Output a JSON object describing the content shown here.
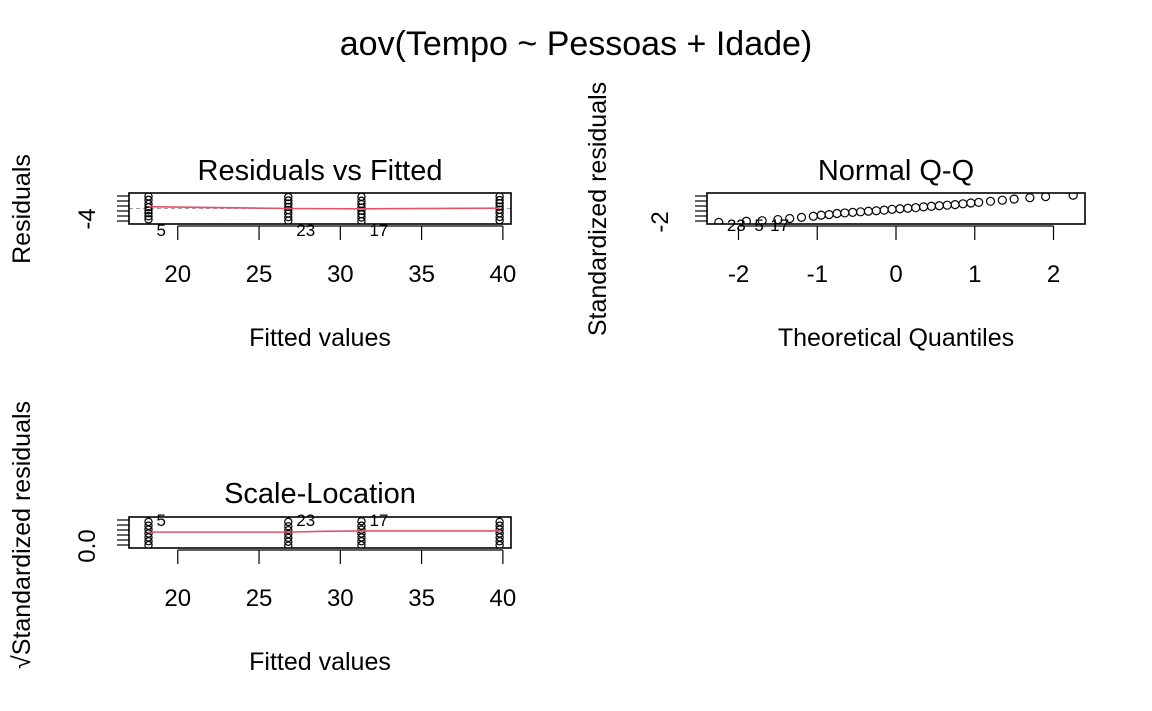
{
  "main_title": "aov(Tempo ~ Pessoas + Idade)",
  "colors": {
    "smooth": "#DF536B",
    "points": "#000000",
    "reference": "#9E9E9E"
  },
  "chart_data": [
    {
      "id": "resid",
      "type": "scatter",
      "title": "Residuals vs Fitted",
      "xlabel": "Fitted values",
      "ylabel": "Residuals",
      "xlim": [
        17,
        40.5
      ],
      "ylim": [
        -5,
        5
      ],
      "xticks": [
        "20",
        "25",
        "30",
        "35",
        "40"
      ],
      "xtick_values": [
        20,
        25,
        30,
        35,
        40
      ],
      "yticks": [
        "-4"
      ],
      "ytick_values": [
        -4
      ],
      "groups": [
        {
          "x": 18.2,
          "y": [
            -3.5,
            -2.5,
            -1.5,
            -0.6,
            0.4,
            1.5,
            2.8,
            3.9
          ]
        },
        {
          "x": 26.8,
          "y": [
            -3.9,
            -2.8,
            -1.6,
            -0.5,
            0.5,
            1.6,
            2.6,
            3.7
          ]
        },
        {
          "x": 31.3,
          "y": [
            -4.1,
            -2.9,
            -1.8,
            -0.7,
            0.3,
            1.4,
            2.5,
            3.8
          ]
        },
        {
          "x": 39.8,
          "y": [
            -3.8,
            -2.7,
            -1.5,
            -0.4,
            0.6,
            1.7,
            2.7,
            3.9
          ]
        }
      ],
      "smooth": {
        "x": [
          18.2,
          26.8,
          31.3,
          39.8
        ],
        "y": [
          0.6,
          0.0,
          -0.1,
          0.1
        ]
      },
      "reference_y": 0,
      "point_labels": [
        {
          "text": "5",
          "x": 18.2,
          "y": -3.5
        },
        {
          "text": "23",
          "x": 26.8,
          "y": -3.9
        },
        {
          "text": "17",
          "x": 31.3,
          "y": -4.1
        }
      ]
    },
    {
      "id": "qq",
      "type": "scatter",
      "title": "Normal Q-Q",
      "xlabel": "Theoretical Quantiles",
      "ylabel": "Standardized residuals",
      "xlim": [
        -2.4,
        2.4
      ],
      "ylim": [
        -2.8,
        2.8
      ],
      "xticks": [
        "-2",
        "-1",
        "0",
        "1",
        "2"
      ],
      "xtick_values": [
        -2,
        -1,
        0,
        1,
        2
      ],
      "yticks": [
        "-2"
      ],
      "ytick_values": [
        -2
      ],
      "theoretical": [
        -2.25,
        -1.9,
        -1.7,
        -1.5,
        -1.35,
        -1.2,
        -1.05,
        -0.95,
        -0.85,
        -0.75,
        -0.65,
        -0.55,
        -0.45,
        -0.35,
        -0.25,
        -0.15,
        -0.05,
        0.05,
        0.15,
        0.25,
        0.35,
        0.45,
        0.55,
        0.65,
        0.75,
        0.85,
        0.95,
        1.05,
        1.2,
        1.35,
        1.5,
        1.7,
        1.9,
        2.25
      ],
      "sample": [
        -2.5,
        -2.3,
        -2.2,
        -2.0,
        -1.8,
        -1.6,
        -1.4,
        -1.2,
        -1.1,
        -0.9,
        -0.8,
        -0.7,
        -0.6,
        -0.5,
        -0.4,
        -0.3,
        -0.15,
        -0.05,
        0.05,
        0.15,
        0.3,
        0.4,
        0.5,
        0.6,
        0.7,
        0.85,
        1.0,
        1.1,
        1.3,
        1.5,
        1.7,
        1.95,
        2.15,
        2.4
      ],
      "point_labels": [
        {
          "text": "23",
          "x": -2.25,
          "y": -2.5
        },
        {
          "text": "5",
          "x": -1.9,
          "y": -2.3
        },
        {
          "text": "17",
          "x": -1.7,
          "y": -2.2
        }
      ]
    },
    {
      "id": "scale",
      "type": "scatter",
      "title": "Scale-Location",
      "xlabel": "Fitted values",
      "ylabel": "√Standardized residuals",
      "xlim": [
        17,
        40.5
      ],
      "ylim": [
        0,
        1.6
      ],
      "xticks": [
        "20",
        "25",
        "30",
        "35",
        "40"
      ],
      "xtick_values": [
        20,
        25,
        30,
        35,
        40
      ],
      "yticks": [
        "0.0"
      ],
      "ytick_values": [
        0.0
      ],
      "groups": [
        {
          "x": 18.2,
          "y": [
            0.15,
            0.35,
            0.55,
            0.75,
            0.95,
            1.15,
            1.35
          ]
        },
        {
          "x": 26.8,
          "y": [
            0.12,
            0.32,
            0.52,
            0.72,
            0.92,
            1.12,
            1.35
          ]
        },
        {
          "x": 31.3,
          "y": [
            0.15,
            0.35,
            0.55,
            0.75,
            0.95,
            1.15,
            1.38
          ]
        },
        {
          "x": 39.8,
          "y": [
            0.15,
            0.35,
            0.55,
            0.75,
            0.95,
            1.15,
            1.35
          ]
        }
      ],
      "smooth": {
        "x": [
          18.2,
          26.8,
          29.0,
          31.3,
          39.8
        ],
        "y": [
          0.82,
          0.82,
          0.86,
          0.88,
          0.88
        ]
      },
      "point_labels": [
        {
          "text": "5",
          "x": 18.2,
          "y": 1.35
        },
        {
          "text": "23",
          "x": 26.8,
          "y": 1.35
        },
        {
          "text": "17",
          "x": 31.3,
          "y": 1.38
        }
      ]
    }
  ]
}
